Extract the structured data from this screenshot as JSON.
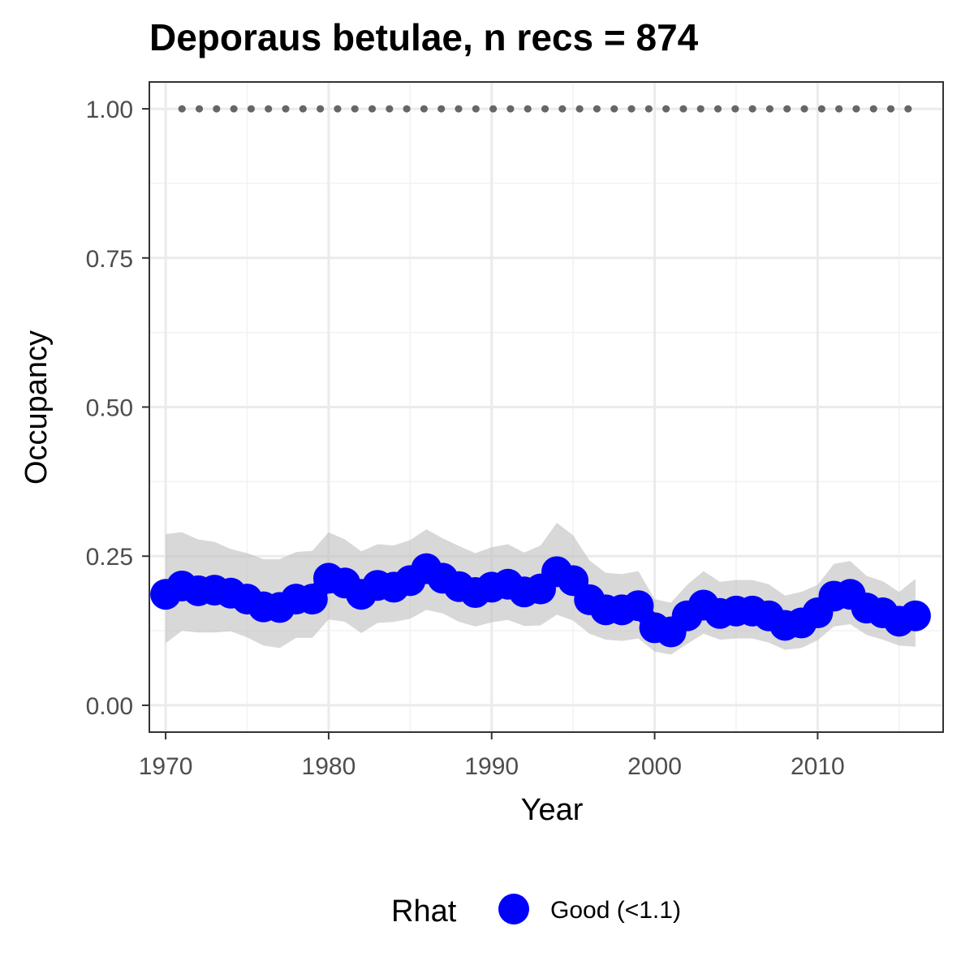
{
  "chart_data": {
    "type": "line",
    "title": "Deporaus betulae, n recs = 874",
    "xlabel": "Year",
    "ylabel": "Occupancy",
    "xlim": [
      1969,
      2017.7
    ],
    "ylim": [
      -0.045,
      1.045
    ],
    "x_ticks": [
      1970,
      1980,
      1990,
      2000,
      2010
    ],
    "y_ticks": [
      0.0,
      0.25,
      0.5,
      0.75,
      1.0
    ],
    "y_tick_labels": [
      "0.00",
      "0.25",
      "0.50",
      "0.75",
      "1.00"
    ],
    "grid": true,
    "legend": {
      "position": "bottom",
      "title": "Rhat",
      "entries": [
        {
          "label": "Good (<1.1)",
          "color": "#0000ff"
        }
      ]
    },
    "series": [
      {
        "name": "Good (<1.1)",
        "color": "#0000ff",
        "x": [
          1970,
          1971,
          1972,
          1973,
          1974,
          1975,
          1976,
          1977,
          1978,
          1979,
          1980,
          1981,
          1982,
          1983,
          1984,
          1985,
          1986,
          1987,
          1988,
          1989,
          1990,
          1991,
          1992,
          1993,
          1994,
          1995,
          1996,
          1997,
          1998,
          1999,
          2000,
          2001,
          2002,
          2003,
          2004,
          2005,
          2006,
          2007,
          2008,
          2009,
          2010,
          2011,
          2012,
          2013,
          2014,
          2015,
          2016
        ],
        "y": [
          0.186,
          0.2,
          0.192,
          0.193,
          0.188,
          0.178,
          0.165,
          0.164,
          0.178,
          0.178,
          0.213,
          0.205,
          0.186,
          0.201,
          0.198,
          0.209,
          0.229,
          0.213,
          0.199,
          0.189,
          0.198,
          0.203,
          0.19,
          0.195,
          0.224,
          0.209,
          0.177,
          0.16,
          0.16,
          0.167,
          0.13,
          0.123,
          0.15,
          0.168,
          0.154,
          0.158,
          0.158,
          0.15,
          0.134,
          0.138,
          0.155,
          0.183,
          0.186,
          0.163,
          0.155,
          0.141,
          0.15
        ],
        "lower": [
          0.104,
          0.125,
          0.122,
          0.122,
          0.124,
          0.114,
          0.1,
          0.096,
          0.113,
          0.113,
          0.144,
          0.14,
          0.121,
          0.138,
          0.14,
          0.145,
          0.16,
          0.154,
          0.14,
          0.132,
          0.139,
          0.143,
          0.133,
          0.134,
          0.152,
          0.142,
          0.12,
          0.11,
          0.108,
          0.112,
          0.09,
          0.085,
          0.103,
          0.12,
          0.11,
          0.112,
          0.112,
          0.105,
          0.093,
          0.096,
          0.109,
          0.132,
          0.136,
          0.118,
          0.11,
          0.1,
          0.098
        ],
        "upper": [
          0.287,
          0.29,
          0.278,
          0.274,
          0.262,
          0.255,
          0.245,
          0.245,
          0.257,
          0.259,
          0.29,
          0.278,
          0.258,
          0.27,
          0.268,
          0.277,
          0.295,
          0.28,
          0.267,
          0.255,
          0.265,
          0.27,
          0.256,
          0.268,
          0.306,
          0.285,
          0.243,
          0.222,
          0.22,
          0.225,
          0.178,
          0.172,
          0.202,
          0.225,
          0.207,
          0.21,
          0.21,
          0.203,
          0.184,
          0.19,
          0.202,
          0.237,
          0.242,
          0.217,
          0.208,
          0.19,
          0.212
        ]
      },
      {
        "name": "",
        "color": "#666666",
        "style": "dotted",
        "x": [
          1971,
          2016
        ],
        "y": [
          1.0,
          1.0
        ]
      }
    ]
  }
}
